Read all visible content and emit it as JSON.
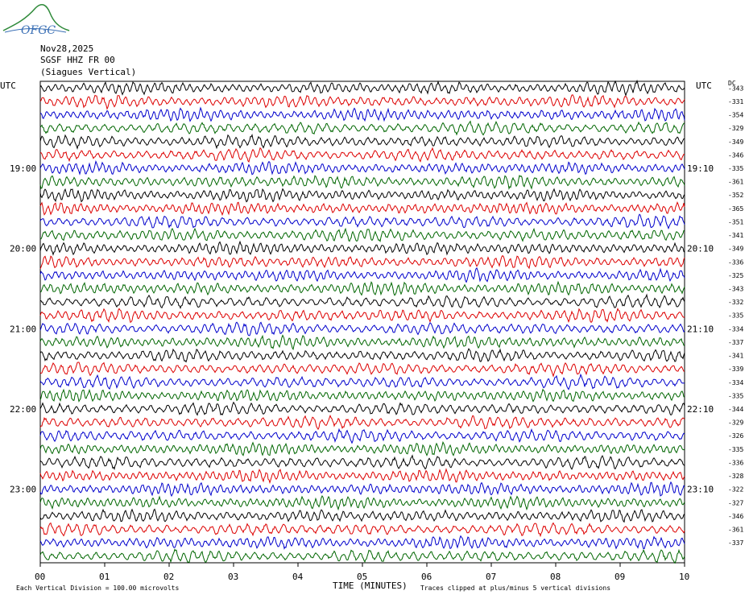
{
  "header": {
    "logo_text": "OFGC",
    "date": "Nov28,2025",
    "station": "SGSF HHZ FR 00",
    "name": "(Siagues Vertical)"
  },
  "chart_data": {
    "type": "line",
    "title": "SGSF HHZ FR 00",
    "xlabel": "TIME (MINUTES)",
    "xlim": [
      0,
      10
    ],
    "x_ticks": [
      "00",
      "01",
      "02",
      "03",
      "04",
      "05",
      "06",
      "07",
      "08",
      "09",
      "10"
    ],
    "left_axis_title": "UTC",
    "right_axis_title": "UTC",
    "dc_title": "DC",
    "left_hour_labels": [
      "19:00",
      "20:00",
      "21:00",
      "22:00",
      "23:00"
    ],
    "right_hour_labels": [
      "19:10",
      "20:10",
      "21:10",
      "22:10",
      "23:10"
    ],
    "trace_colors": [
      "#000000",
      "#dd0000",
      "#0000cc",
      "#006600"
    ],
    "dc_offsets": [
      -343,
      -331,
      -354,
      -329,
      -349,
      -346,
      -335,
      -361,
      -352,
      -365,
      -351,
      -341,
      -349,
      -336,
      -325,
      -343,
      -332,
      -335,
      -334,
      -337,
      -341,
      -339,
      -334,
      -335,
      -344,
      -329,
      -326,
      -335,
      -336,
      -328,
      -322,
      -327,
      -346,
      -361,
      -337
    ],
    "trace_count": 36,
    "footer_left": "Each Vertical Division =  100.00 microvolts",
    "footer_right": "Traces clipped at plus/minus 5 vertical divisions"
  }
}
